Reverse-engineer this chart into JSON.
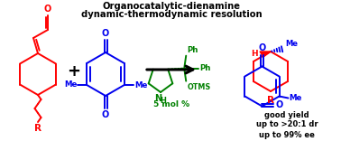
{
  "title_line1": "Organocatalytic-dienamine",
  "title_line2": "dynamic-thermodynamic resolution",
  "title_fontsize": 7.2,
  "result_line1": "good yield",
  "result_line2": "up to >20:1 dr",
  "result_line3": "up to 99% ee",
  "result_fontsize": 6.0,
  "color_red": "#ff0000",
  "color_blue": "#0000ee",
  "color_green": "#008000",
  "color_black": "#000000",
  "color_white": "#ffffff",
  "bg_color": "#ffffff",
  "fig_width": 3.78,
  "fig_height": 1.77,
  "dpi": 100
}
